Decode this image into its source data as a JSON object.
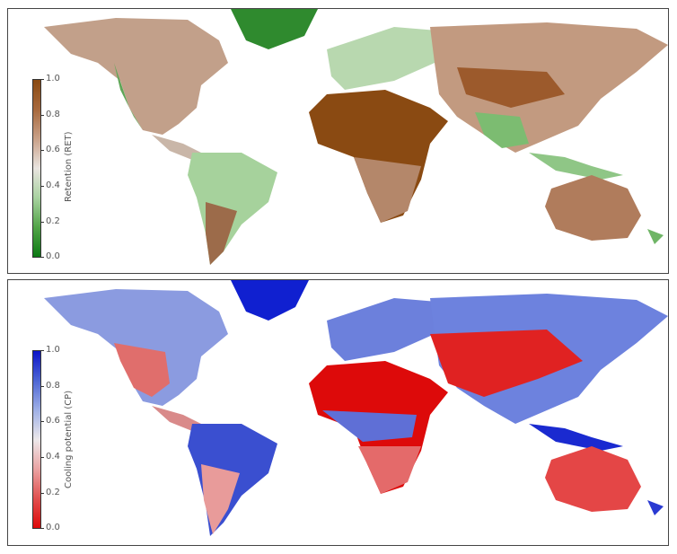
{
  "panels": {
    "top": {
      "colorbar_label": "Retention (RET)",
      "ticks": [
        "1.0",
        "0.8",
        "0.6",
        "0.4",
        "0.2",
        "0.0"
      ],
      "colormap": [
        "#8a4a12",
        "#a7693d",
        "#c9a189",
        "#e9e4e0",
        "#a8d2a0",
        "#52a448",
        "#0c7a14"
      ]
    },
    "bottom": {
      "colorbar_label": "Cooling potential (CP)",
      "ticks": [
        "1.0",
        "0.8",
        "0.6",
        "0.4",
        "0.2",
        "0.0"
      ],
      "colormap": [
        "#0c14c8",
        "#4d66d4",
        "#9fb0e6",
        "#ece8ea",
        "#eaa3a3",
        "#e0504f",
        "#dd0a0a"
      ]
    }
  }
}
